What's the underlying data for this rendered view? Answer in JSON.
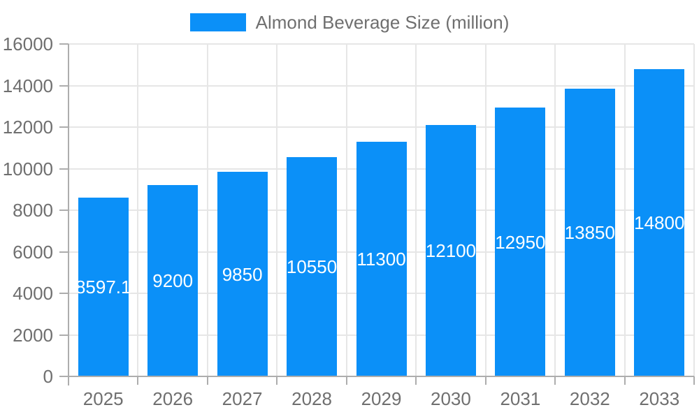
{
  "chart_data": {
    "type": "bar",
    "title": "",
    "categories": [
      "2025",
      "2026",
      "2027",
      "2028",
      "2029",
      "2030",
      "2031",
      "2032",
      "2033"
    ],
    "series": [
      {
        "name": "Almond Beverage Size (million)",
        "values": [
          8597.1,
          9200,
          9850,
          10550,
          11300,
          12100,
          12950,
          13850,
          14800
        ],
        "color": "#0b90f8"
      }
    ],
    "bar_value_labels": [
      "8597.1",
      "9200",
      "9850",
      "10550",
      "11300",
      "12100",
      "12950",
      "13850",
      "14800"
    ],
    "xlabel": "",
    "ylabel": "",
    "ylim": [
      0,
      16000
    ],
    "yticks": [
      0,
      2000,
      4000,
      6000,
      8000,
      10000,
      12000,
      14000,
      16000
    ],
    "ytick_labels": [
      "0",
      "2000",
      "4000",
      "6000",
      "8000",
      "10000",
      "12000",
      "14000",
      "16000"
    ],
    "legend_position": "top-center",
    "grid": "horizontal and vertical light gridlines",
    "colors": {
      "bar": "#0b90f8",
      "bar_label_text": "#ffffff",
      "axis_text": "#6f6f6f",
      "legend_text": "#6f6f6f",
      "gridline": "#e6e6e6",
      "axis_line": "#adadad",
      "background": "#ffffff"
    }
  }
}
